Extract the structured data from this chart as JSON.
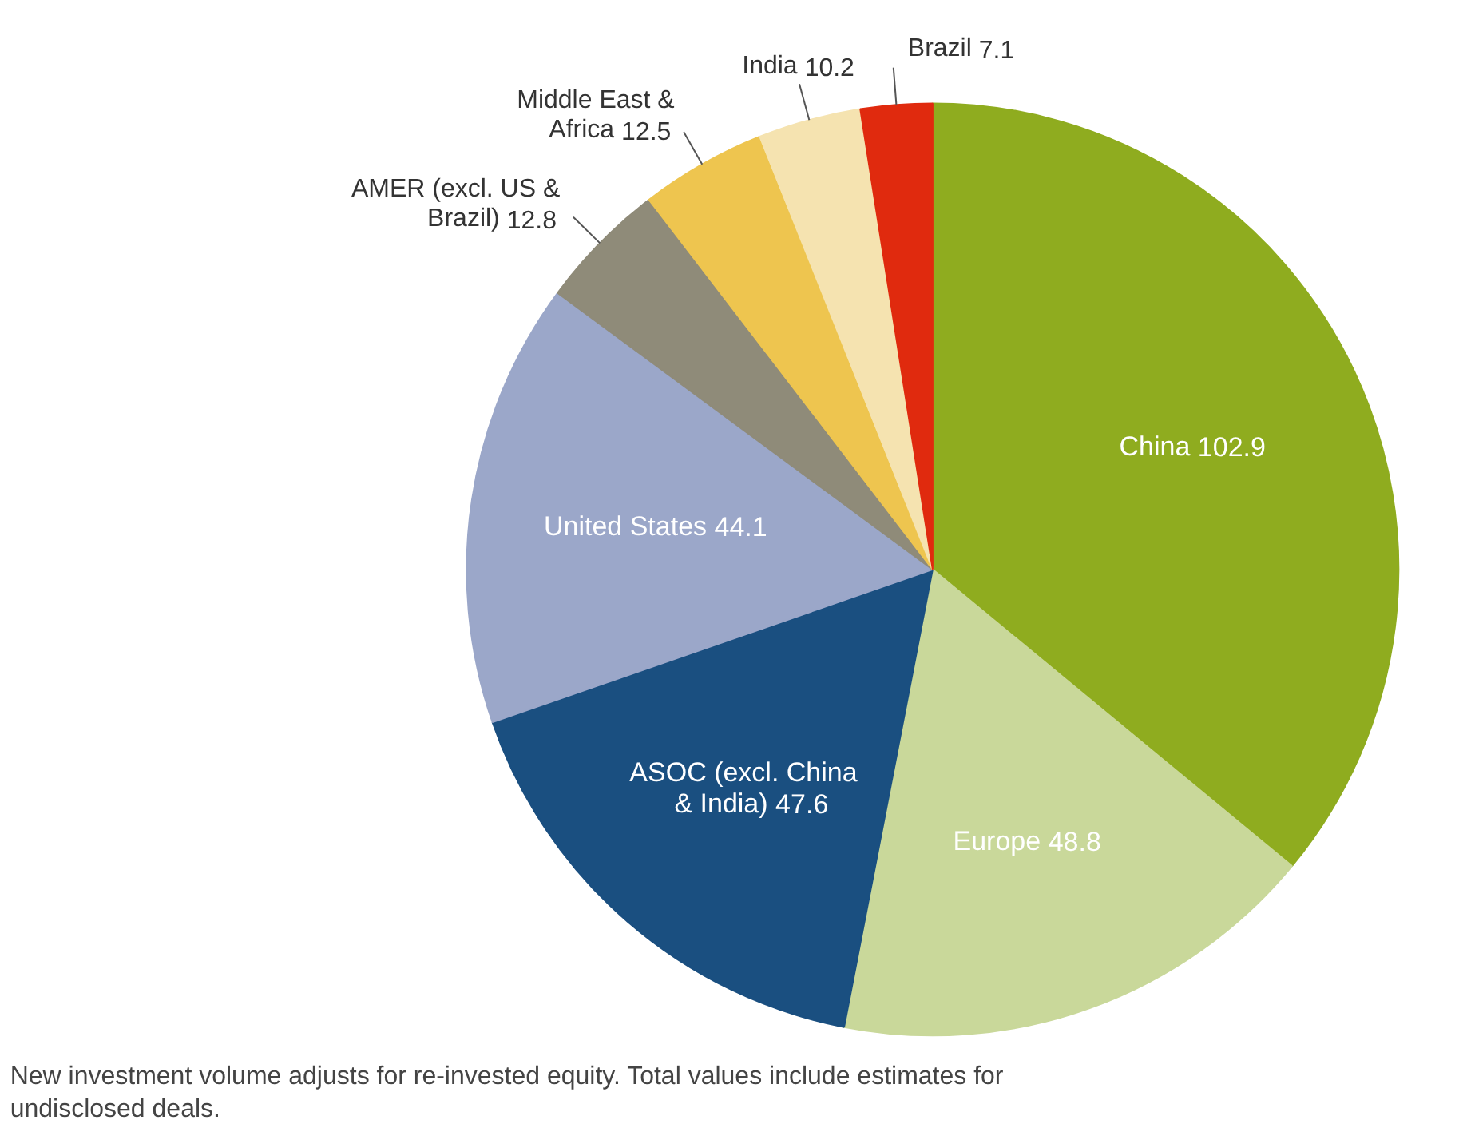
{
  "chart_data": {
    "type": "pie",
    "categories": [
      "China",
      "Europe",
      "ASOC (excl. China & India)",
      "United States",
      "AMER (excl. US & Brazil)",
      "Middle East & Africa",
      "India",
      "Brazil"
    ],
    "values": [
      102.9,
      48.8,
      47.6,
      44.1,
      12.8,
      12.5,
      10.2,
      7.1
    ],
    "colors": [
      "#8fac1f",
      "#c9d89a",
      "#1a4f80",
      "#9ba7c9",
      "#8f8b79",
      "#eec54f",
      "#f5e3b0",
      "#e02a0e"
    ],
    "data_labels": true,
    "annotations": [
      "New investment volume adjusts for re-invested equity. Total values include estimates for undisclosed deals."
    ]
  }
}
